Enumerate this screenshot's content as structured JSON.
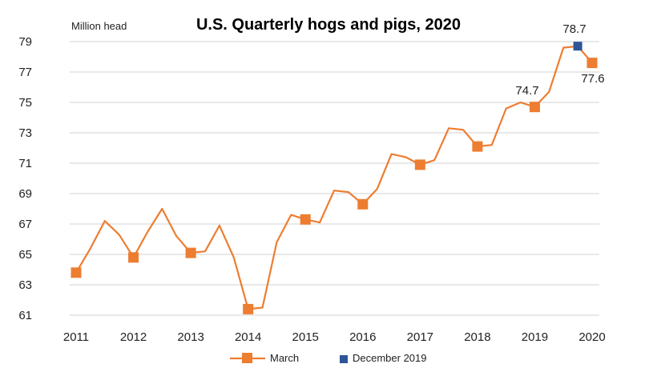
{
  "chart_data": {
    "type": "line",
    "title": "U.S. Quarterly hogs and pigs, 2020",
    "unit_label": "Million head",
    "ylim": [
      61,
      79
    ],
    "yticks": [
      61,
      63,
      65,
      67,
      69,
      71,
      73,
      75,
      77,
      79
    ],
    "x_year_labels": [
      "2011",
      "2012",
      "2013",
      "2014",
      "2015",
      "2016",
      "2017",
      "2018",
      "2019",
      "2020"
    ],
    "grid": true,
    "legend_position": "bottom",
    "series_line": {
      "name": "March",
      "color": "#ED7D31",
      "x": [
        2011,
        2011.25,
        2011.5,
        2011.75,
        2012,
        2012.25,
        2012.5,
        2012.75,
        2013,
        2013.25,
        2013.5,
        2013.75,
        2014,
        2014.25,
        2014.5,
        2014.75,
        2015,
        2015.25,
        2015.5,
        2015.75,
        2016,
        2016.25,
        2016.5,
        2016.75,
        2017,
        2017.25,
        2017.5,
        2017.75,
        2018,
        2018.25,
        2018.5,
        2018.75,
        2019,
        2019.25,
        2019.5,
        2019.75,
        2020
      ],
      "values": [
        63.8,
        65.4,
        67.2,
        66.3,
        64.8,
        66.5,
        68.0,
        66.2,
        65.1,
        65.2,
        66.9,
        64.8,
        61.4,
        61.5,
        65.8,
        67.6,
        67.3,
        67.1,
        69.2,
        69.1,
        68.3,
        69.3,
        71.6,
        71.4,
        70.9,
        71.2,
        73.3,
        73.2,
        72.1,
        72.2,
        74.6,
        75.0,
        74.7,
        75.7,
        78.6,
        78.7,
        77.6
      ]
    },
    "series_march": {
      "name": "March",
      "color": "#ED7D31",
      "x": [
        2011,
        2012,
        2013,
        2014,
        2015,
        2016,
        2017,
        2018,
        2019,
        2020
      ],
      "values": [
        63.8,
        64.8,
        65.1,
        61.4,
        67.3,
        68.3,
        70.9,
        72.1,
        74.7,
        77.6
      ]
    },
    "series_dec2019": {
      "name": "December 2019",
      "color": "#2F5597",
      "x": [
        2019.75
      ],
      "values": [
        78.7
      ]
    },
    "data_labels": [
      "74.7",
      "78.7",
      "77.6"
    ]
  }
}
